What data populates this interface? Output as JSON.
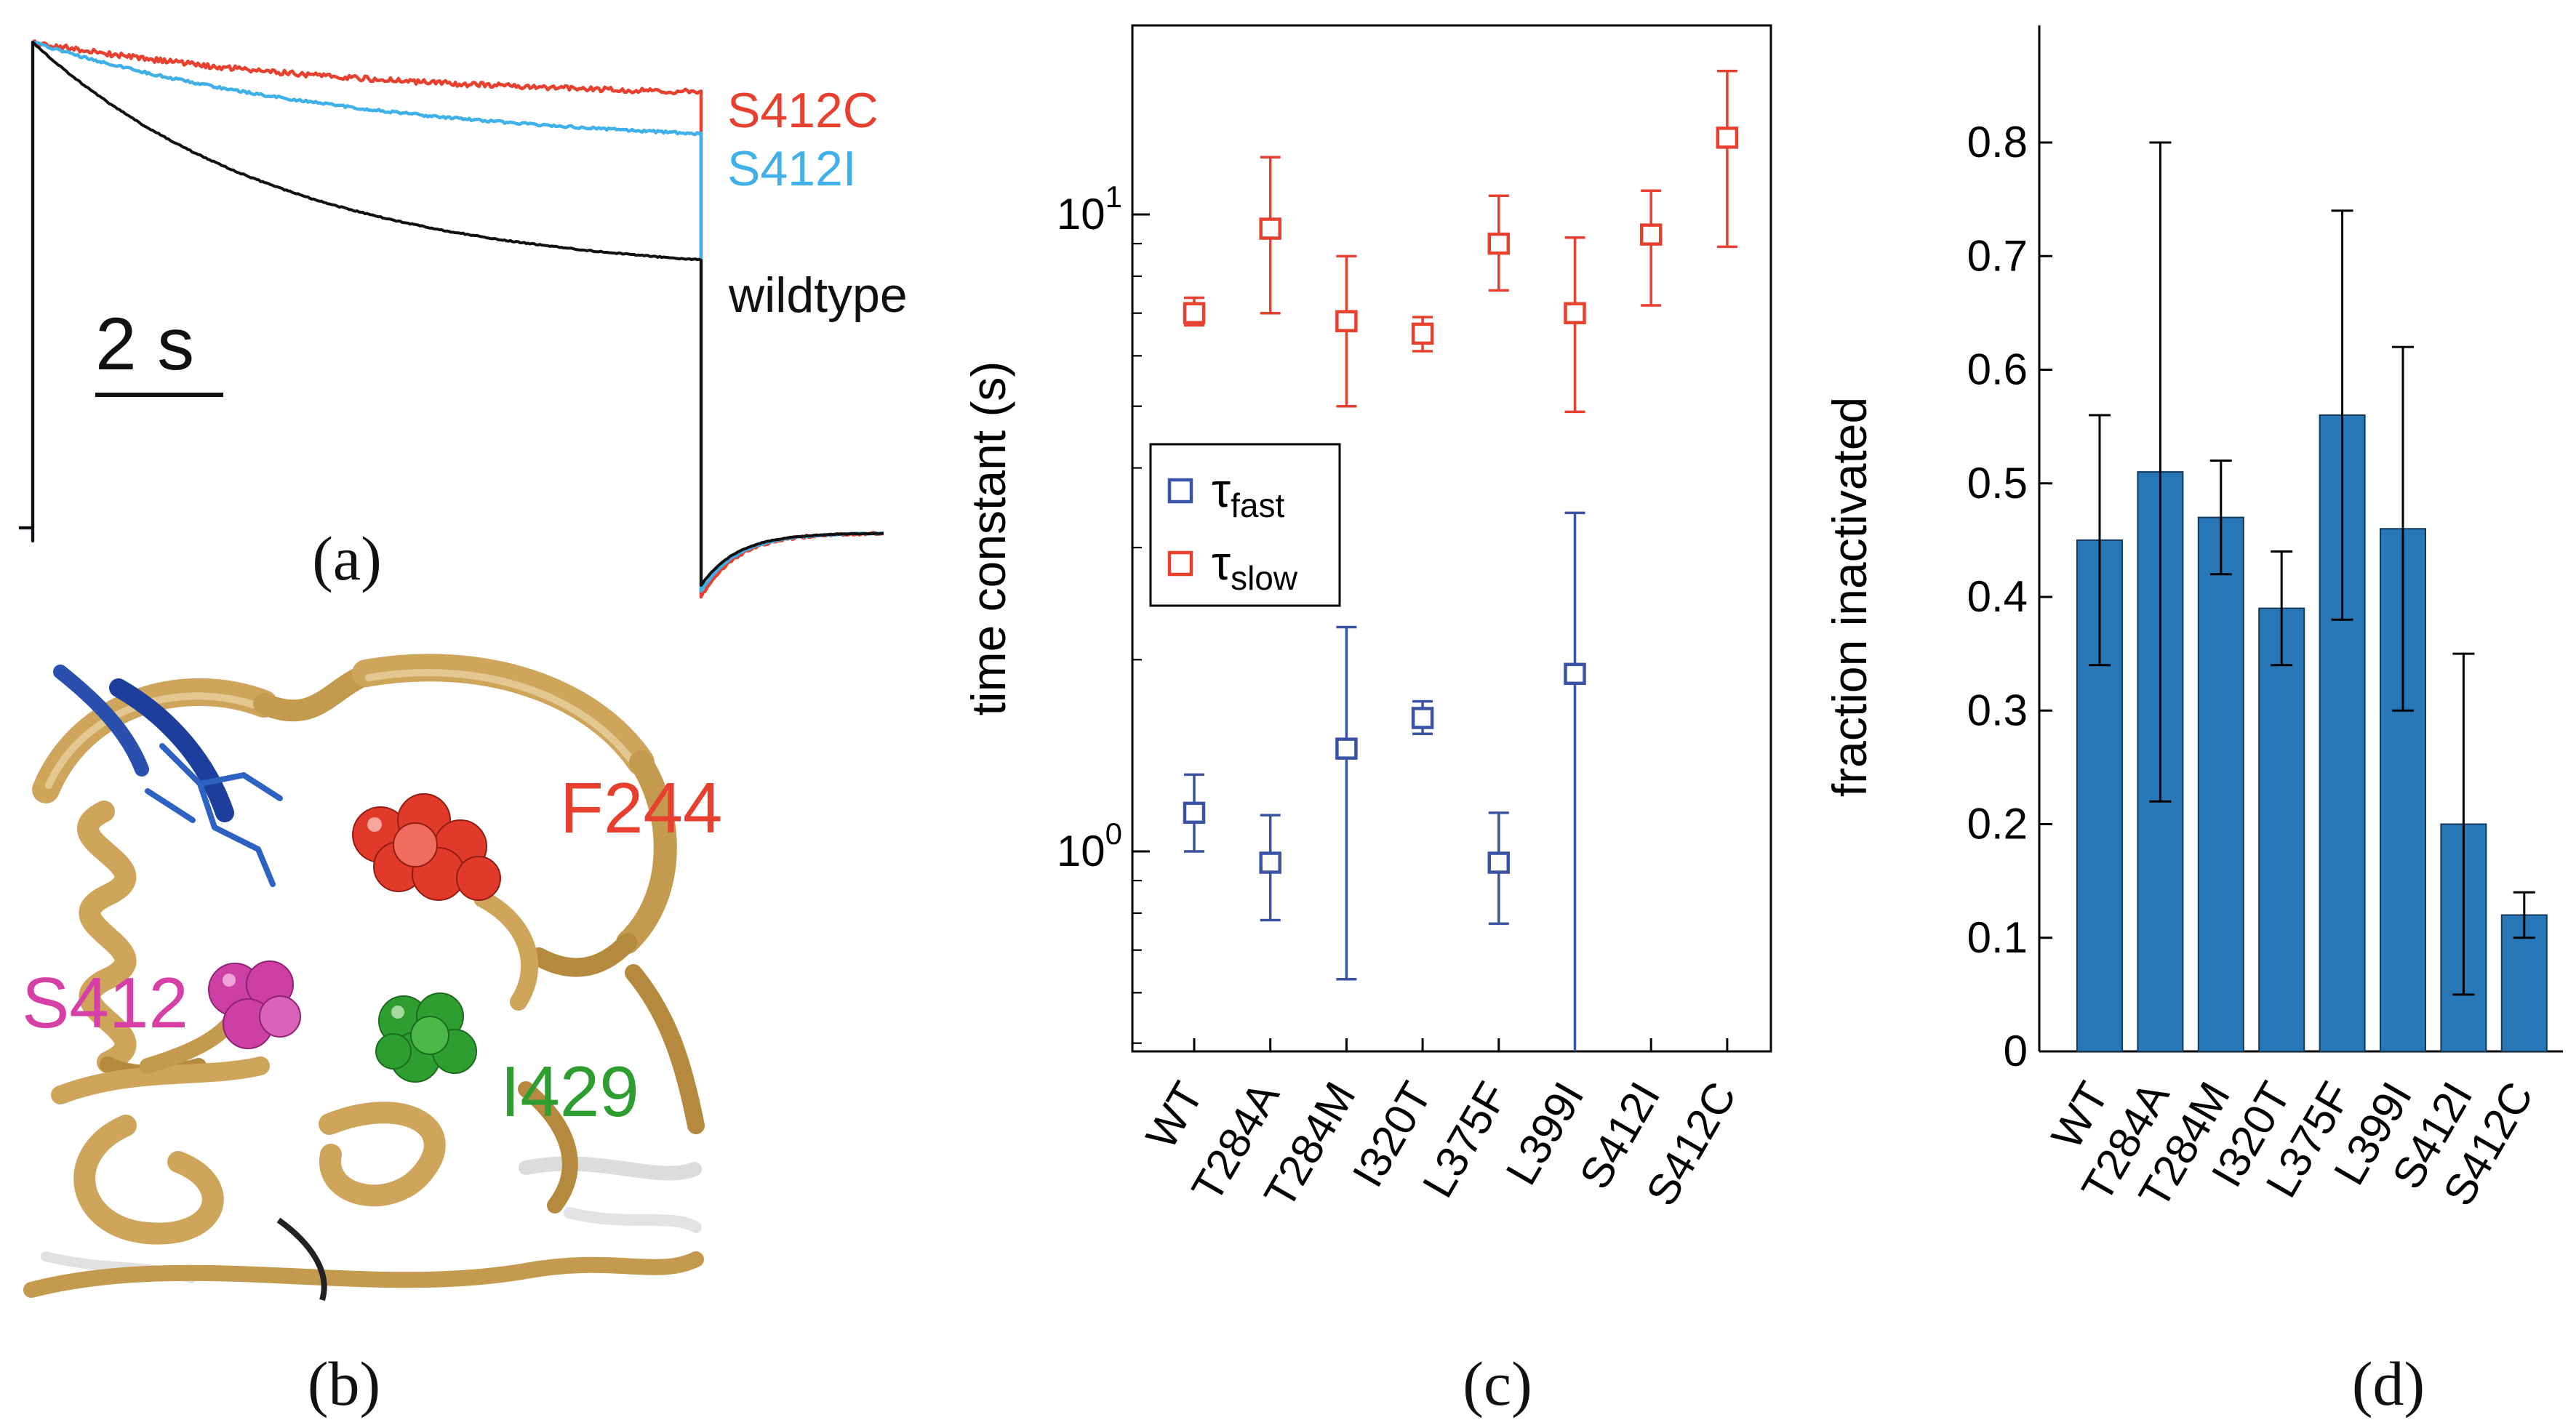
{
  "figure": {
    "panel_labels": {
      "a": "(a)",
      "b": "(b)",
      "c": "(c)",
      "d": "(d)"
    }
  },
  "panel_b": {
    "labels": [
      {
        "text": "F244",
        "color": "#e8402f"
      },
      {
        "text": "S412",
        "color": "#d63fa6"
      },
      {
        "text": "I429",
        "color": "#2f9e30"
      }
    ],
    "structure_colors": {
      "ribbon_tan": "#cfa55c",
      "helix_blue": "#1d3e9c",
      "spheres_red": "#e23a2a",
      "spheres_magenta": "#ce3fa6",
      "spheres_green": "#2f9e30"
    }
  },
  "chart_data": [
    {
      "type": "line",
      "panel": "a",
      "description": "Current traces during long depolarizing pulse showing slow inactivation and recovery tails",
      "scale_bar_label": "2 s",
      "traces": [
        {
          "name": "S412C",
          "color": "#e8402f",
          "plateau": 0.881,
          "tau": 0.5,
          "tail_start": 806,
          "noise": 3.5
        },
        {
          "name": "S412I",
          "color": "#3fb0e8",
          "plateau": 0.782,
          "tau": 0.5,
          "tail_start": 798,
          "noise": 1.6
        },
        {
          "name": "wildtype",
          "color": "#111111",
          "plateau": 0.517,
          "tau": 0.38,
          "tail_start": 790,
          "noise": 0.8
        }
      ]
    },
    {
      "type": "scatter",
      "panel": "c",
      "ylabel": "time constant (s)",
      "yscale": "log",
      "ylim": [
        0.49,
        19.8
      ],
      "grid": false,
      "legend_position": "middle-left",
      "categories": [
        "WT",
        "T284A",
        "T284M",
        "I320T",
        "L375F",
        "L399I",
        "S412I",
        "S412C"
      ],
      "series": [
        {
          "name": "tau_fast",
          "label_symbol": "τ",
          "label_sub": "fast",
          "color": "#3a53a4",
          "values": [
            1.15,
            0.96,
            1.45,
            1.62,
            0.96,
            1.9,
            null,
            null
          ],
          "err_lo": [
            1.0,
            0.78,
            0.63,
            1.53,
            0.77,
            0.46,
            null,
            null
          ],
          "err_hi": [
            1.32,
            1.14,
            2.25,
            1.72,
            1.15,
            3.4,
            null,
            null
          ]
        },
        {
          "name": "tau_slow",
          "label_symbol": "τ",
          "label_sub": "slow",
          "color": "#e8402f",
          "values": [
            7.0,
            9.5,
            6.8,
            6.5,
            9.0,
            7.0,
            9.3,
            13.2
          ],
          "err_lo": [
            6.7,
            7.0,
            5.0,
            6.1,
            7.6,
            4.9,
            7.2,
            8.9
          ],
          "err_hi": [
            7.4,
            12.3,
            8.6,
            6.9,
            10.7,
            9.2,
            10.9,
            16.8
          ]
        }
      ]
    },
    {
      "type": "bar",
      "panel": "d",
      "ylabel": "fraction inactivated",
      "ylim": [
        0,
        0.9
      ],
      "yticks": [
        0,
        0.1,
        0.2,
        0.3,
        0.4,
        0.5,
        0.6,
        0.7,
        0.8
      ],
      "categories": [
        "WT",
        "T284A",
        "T284M",
        "I320T",
        "L375F",
        "L399I",
        "S412I",
        "S412C"
      ],
      "values": [
        0.45,
        0.51,
        0.47,
        0.39,
        0.56,
        0.46,
        0.2,
        0.12
      ],
      "err_lo": [
        0.34,
        0.22,
        0.42,
        0.34,
        0.38,
        0.3,
        0.05,
        0.1
      ],
      "err_hi": [
        0.56,
        0.8,
        0.52,
        0.44,
        0.74,
        0.62,
        0.35,
        0.14
      ],
      "bar_color": "#2878b8"
    }
  ]
}
